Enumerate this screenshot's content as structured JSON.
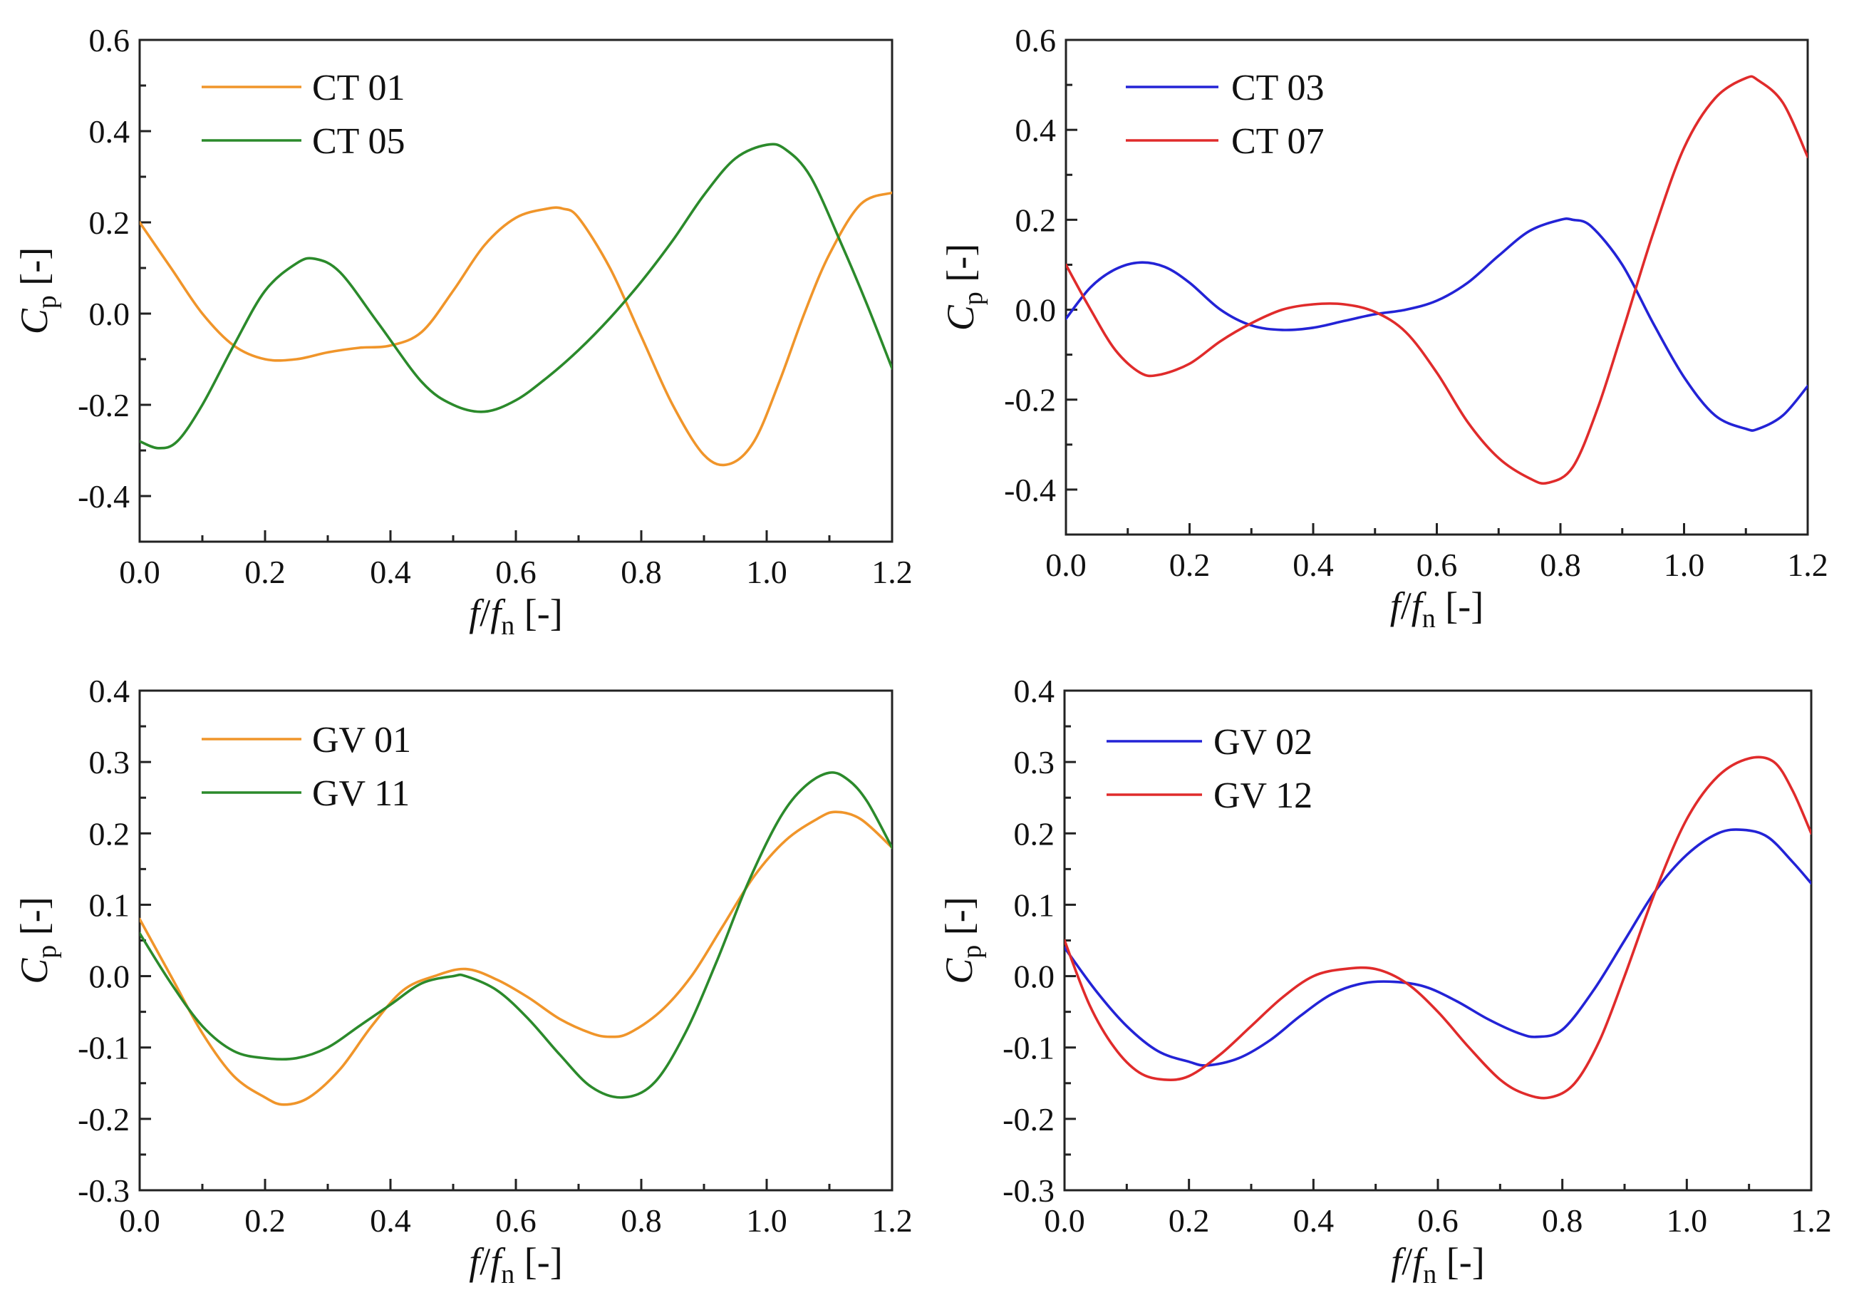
{
  "chart_data": [
    {
      "type": "line",
      "x_tick_labels": [
        "0.0",
        "0.2",
        "0.4",
        "0.6",
        "0.8",
        "1.0",
        "1.2"
      ],
      "y_tick_labels": [
        "-0.4",
        "-0.2",
        "0.0",
        "0.2",
        "0.4",
        "0.6"
      ],
      "xlim": [
        0.0,
        1.2
      ],
      "ylim": [
        -0.5,
        0.6
      ],
      "xlabel": {
        "var1": "f",
        "slash": "/",
        "var2": "f",
        "sub": "n",
        "unit": " [-]"
      },
      "ylabel": {
        "var": "C",
        "sub": "p",
        "unit": " [-]"
      },
      "legend_position": "top-left",
      "series": [
        {
          "name": "CT 01",
          "color": "#f0952a",
          "x": [
            0.0,
            0.05,
            0.1,
            0.15,
            0.2,
            0.25,
            0.3,
            0.35,
            0.4,
            0.45,
            0.5,
            0.55,
            0.6,
            0.65,
            0.675,
            0.7,
            0.75,
            0.8,
            0.85,
            0.9,
            0.94,
            0.98,
            1.02,
            1.06,
            1.1,
            1.15,
            1.2
          ],
          "values": [
            0.2,
            0.1,
            0.0,
            -0.07,
            -0.1,
            -0.1,
            -0.085,
            -0.075,
            -0.07,
            -0.04,
            0.05,
            0.15,
            0.21,
            0.23,
            0.23,
            0.21,
            0.1,
            -0.05,
            -0.2,
            -0.31,
            -0.33,
            -0.28,
            -0.15,
            0.0,
            0.13,
            0.24,
            0.265
          ]
        },
        {
          "name": "CT 05",
          "color": "#2b8a2b",
          "x": [
            0.0,
            0.03,
            0.06,
            0.1,
            0.15,
            0.2,
            0.25,
            0.28,
            0.32,
            0.38,
            0.45,
            0.5,
            0.55,
            0.6,
            0.65,
            0.7,
            0.75,
            0.8,
            0.85,
            0.9,
            0.95,
            1.0,
            1.03,
            1.07,
            1.12,
            1.16,
            1.2
          ],
          "values": [
            -0.28,
            -0.295,
            -0.28,
            -0.2,
            -0.07,
            0.05,
            0.11,
            0.12,
            0.09,
            -0.02,
            -0.15,
            -0.2,
            -0.215,
            -0.19,
            -0.14,
            -0.08,
            -0.01,
            0.07,
            0.16,
            0.26,
            0.34,
            0.37,
            0.36,
            0.3,
            0.15,
            0.02,
            -0.12
          ]
        }
      ]
    },
    {
      "type": "line",
      "x_tick_labels": [
        "0.0",
        "0.2",
        "0.4",
        "0.6",
        "0.8",
        "1.0",
        "1.2"
      ],
      "y_tick_labels": [
        "-0.4",
        "-0.2",
        "0.0",
        "0.2",
        "0.4",
        "0.6"
      ],
      "xlim": [
        0.0,
        1.2
      ],
      "ylim": [
        -0.5,
        0.6
      ],
      "xlabel": {
        "var1": "f",
        "slash": "/",
        "var2": "f",
        "sub": "n",
        "unit": " [-]"
      },
      "ylabel": {
        "var": "C",
        "sub": "p",
        "unit": " [-]"
      },
      "legend_position": "top-left",
      "series": [
        {
          "name": "CT 03",
          "color": "#2323d6",
          "x": [
            0.0,
            0.04,
            0.08,
            0.12,
            0.16,
            0.2,
            0.25,
            0.3,
            0.35,
            0.4,
            0.45,
            0.5,
            0.55,
            0.6,
            0.65,
            0.7,
            0.75,
            0.8,
            0.82,
            0.85,
            0.9,
            0.95,
            1.0,
            1.05,
            1.1,
            1.12,
            1.16,
            1.2
          ],
          "values": [
            -0.02,
            0.05,
            0.09,
            0.105,
            0.095,
            0.06,
            0.0,
            -0.035,
            -0.045,
            -0.04,
            -0.025,
            -0.01,
            0.0,
            0.02,
            0.06,
            0.12,
            0.175,
            0.2,
            0.2,
            0.185,
            0.1,
            -0.03,
            -0.15,
            -0.235,
            -0.265,
            -0.265,
            -0.235,
            -0.17
          ]
        },
        {
          "name": "CT 07",
          "color": "#e02b2b",
          "x": [
            0.0,
            0.04,
            0.08,
            0.12,
            0.15,
            0.2,
            0.25,
            0.3,
            0.35,
            0.4,
            0.45,
            0.5,
            0.55,
            0.6,
            0.65,
            0.7,
            0.75,
            0.78,
            0.82,
            0.86,
            0.9,
            0.95,
            1.0,
            1.05,
            1.1,
            1.12,
            1.16,
            1.2
          ],
          "values": [
            0.1,
            0.0,
            -0.09,
            -0.14,
            -0.145,
            -0.12,
            -0.07,
            -0.03,
            0.0,
            0.012,
            0.012,
            -0.005,
            -0.05,
            -0.14,
            -0.25,
            -0.33,
            -0.375,
            -0.385,
            -0.35,
            -0.22,
            -0.05,
            0.17,
            0.36,
            0.47,
            0.515,
            0.51,
            0.46,
            0.34
          ]
        }
      ]
    },
    {
      "type": "line",
      "x_tick_labels": [
        "0.0",
        "0.2",
        "0.4",
        "0.6",
        "0.8",
        "1.0",
        "1.2"
      ],
      "y_tick_labels": [
        "-0.3",
        "-0.2",
        "-0.1",
        "0.0",
        "0.1",
        "0.2",
        "0.3",
        "0.4"
      ],
      "xlim": [
        0.0,
        1.2
      ],
      "ylim": [
        -0.3,
        0.4
      ],
      "xlabel": {
        "var1": "f",
        "slash": "/",
        "var2": "f",
        "sub": "n",
        "unit": " [-]"
      },
      "ylabel": {
        "var": "C",
        "sub": "p",
        "unit": " [-]"
      },
      "legend_position": "top-left",
      "series": [
        {
          "name": "GV 01",
          "color": "#f0952a",
          "x": [
            0.0,
            0.05,
            0.1,
            0.15,
            0.2,
            0.23,
            0.27,
            0.32,
            0.37,
            0.42,
            0.47,
            0.52,
            0.57,
            0.62,
            0.67,
            0.72,
            0.75,
            0.78,
            0.83,
            0.88,
            0.93,
            0.98,
            1.03,
            1.08,
            1.11,
            1.15,
            1.2
          ],
          "values": [
            0.08,
            0.0,
            -0.08,
            -0.14,
            -0.17,
            -0.18,
            -0.17,
            -0.13,
            -0.07,
            -0.02,
            0.0,
            0.01,
            -0.005,
            -0.03,
            -0.06,
            -0.08,
            -0.085,
            -0.08,
            -0.05,
            0.0,
            0.07,
            0.14,
            0.19,
            0.22,
            0.23,
            0.22,
            0.18
          ]
        },
        {
          "name": "GV 11",
          "color": "#2b8a2b",
          "x": [
            0.0,
            0.05,
            0.1,
            0.15,
            0.2,
            0.25,
            0.3,
            0.35,
            0.4,
            0.45,
            0.5,
            0.52,
            0.57,
            0.62,
            0.67,
            0.72,
            0.77,
            0.82,
            0.87,
            0.92,
            0.97,
            1.02,
            1.06,
            1.1,
            1.13,
            1.16,
            1.2
          ],
          "values": [
            0.06,
            -0.01,
            -0.07,
            -0.105,
            -0.115,
            -0.115,
            -0.1,
            -0.07,
            -0.04,
            -0.01,
            0.0,
            0.0,
            -0.02,
            -0.06,
            -0.11,
            -0.155,
            -0.17,
            -0.15,
            -0.08,
            0.02,
            0.13,
            0.22,
            0.265,
            0.285,
            0.275,
            0.245,
            0.18
          ]
        }
      ]
    },
    {
      "type": "line",
      "x_tick_labels": [
        "0.0",
        "0.2",
        "0.4",
        "0.6",
        "0.8",
        "1.0",
        "1.2"
      ],
      "y_tick_labels": [
        "-0.3",
        "-0.2",
        "-0.1",
        "0.0",
        "0.1",
        "0.2",
        "0.3",
        "0.4"
      ],
      "xlim": [
        0.0,
        1.2
      ],
      "ylim": [
        -0.3,
        0.4
      ],
      "xlabel": {
        "var1": "f",
        "slash": "/",
        "var2": "f",
        "sub": "n",
        "unit": " [-]"
      },
      "ylabel": {
        "var": "C",
        "sub": "p",
        "unit": " [-]"
      },
      "legend_position": "top-left",
      "series": [
        {
          "name": "GV 02",
          "color": "#2323d6",
          "x": [
            0.0,
            0.05,
            0.1,
            0.15,
            0.2,
            0.23,
            0.28,
            0.33,
            0.38,
            0.43,
            0.48,
            0.53,
            0.58,
            0.63,
            0.68,
            0.73,
            0.76,
            0.8,
            0.85,
            0.9,
            0.95,
            1.0,
            1.05,
            1.09,
            1.13,
            1.17,
            1.2
          ],
          "values": [
            0.04,
            -0.02,
            -0.07,
            -0.105,
            -0.12,
            -0.125,
            -0.115,
            -0.09,
            -0.055,
            -0.025,
            -0.01,
            -0.008,
            -0.015,
            -0.035,
            -0.06,
            -0.08,
            -0.085,
            -0.075,
            -0.02,
            0.05,
            0.12,
            0.17,
            0.2,
            0.205,
            0.195,
            0.16,
            0.13
          ]
        },
        {
          "name": "GV 12",
          "color": "#e02b2b",
          "x": [
            0.0,
            0.04,
            0.08,
            0.12,
            0.16,
            0.2,
            0.25,
            0.3,
            0.35,
            0.4,
            0.45,
            0.5,
            0.55,
            0.6,
            0.65,
            0.7,
            0.74,
            0.78,
            0.82,
            0.86,
            0.9,
            0.95,
            1.0,
            1.05,
            1.1,
            1.14,
            1.17,
            1.2
          ],
          "values": [
            0.05,
            -0.04,
            -0.1,
            -0.135,
            -0.145,
            -0.14,
            -0.11,
            -0.07,
            -0.03,
            0.0,
            0.01,
            0.01,
            -0.01,
            -0.05,
            -0.1,
            -0.145,
            -0.165,
            -0.17,
            -0.15,
            -0.09,
            0.0,
            0.12,
            0.22,
            0.28,
            0.305,
            0.3,
            0.26,
            0.2
          ]
        }
      ]
    }
  ]
}
